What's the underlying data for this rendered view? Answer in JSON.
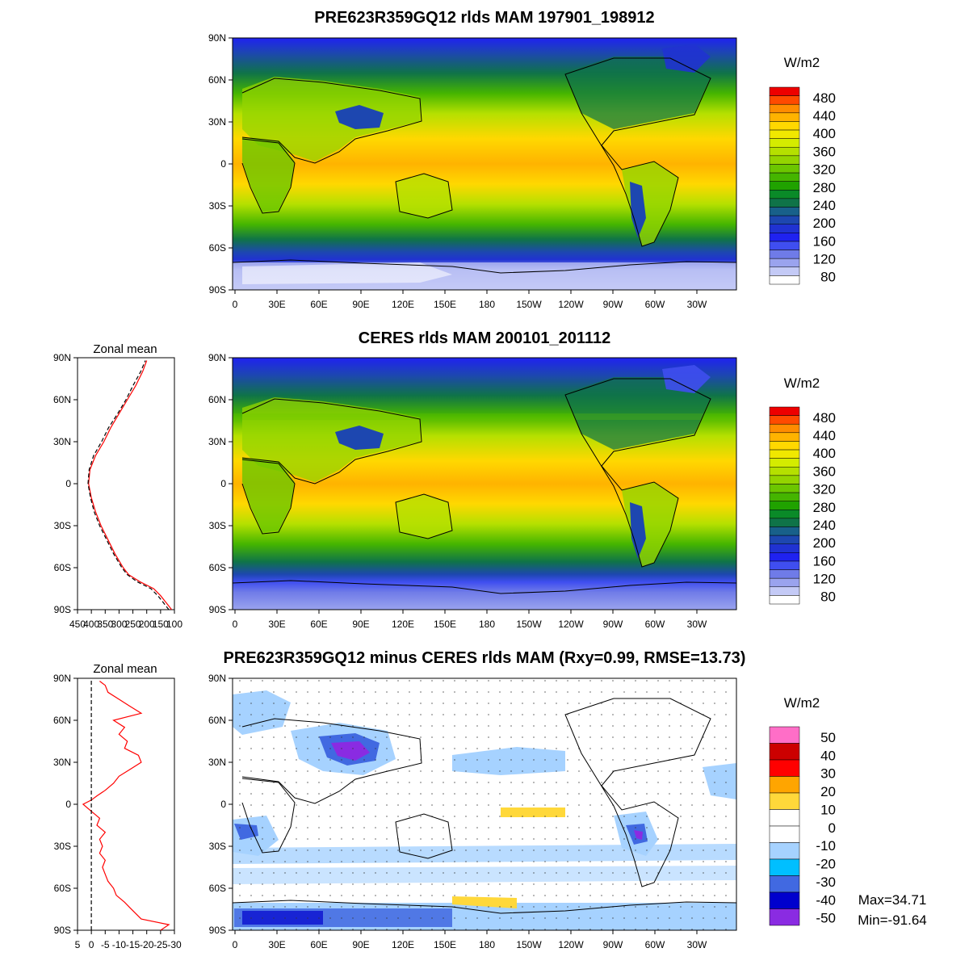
{
  "units": "W/m2",
  "lat_ticks": [
    "90N",
    "60N",
    "30N",
    "0",
    "30S",
    "60S",
    "90S"
  ],
  "lon_ticks": [
    "0",
    "30E",
    "60E",
    "90E",
    "120E",
    "150E",
    "180",
    "150W",
    "120W",
    "90W",
    "60W",
    "30W"
  ],
  "zonal_mean_label": "Zonal mean",
  "zonal_x_ticks_abs": [
    "450",
    "400",
    "350",
    "300",
    "250",
    "200",
    "150",
    "100"
  ],
  "zonal_x_ticks_diff": [
    "5",
    "0",
    "-5",
    "-10",
    "-15",
    "-20",
    "-25",
    "-30"
  ],
  "panels": [
    {
      "id": "model",
      "title": "PRE623R359GQ12 rlds MAM 197901_198912"
    },
    {
      "id": "obs",
      "title": "CERES rlds MAM 200101_201112"
    },
    {
      "id": "diff",
      "title": "PRE623R359GQ12 minus CERES rlds MAM (Rxy=0.99, RMSE=13.73)"
    }
  ],
  "colorbar_abs": {
    "labels": [
      "480",
      "440",
      "400",
      "360",
      "320",
      "280",
      "240",
      "200",
      "160",
      "120",
      "80"
    ],
    "colors": [
      "#ee0000",
      "#ff4a00",
      "#ff8c00",
      "#ffb300",
      "#ffd800",
      "#f0e800",
      "#d4ec00",
      "#b5e000",
      "#94d400",
      "#6cc600",
      "#45b500",
      "#20a200",
      "#0a8a28",
      "#0f7348",
      "#18608a",
      "#1d47b0",
      "#2032d2",
      "#1f22f0",
      "#3f4ef0",
      "#6f7be8",
      "#9aa3ee",
      "#c4caf6",
      "#ffffff"
    ]
  },
  "colorbar_diff": {
    "labels": [
      "50",
      "40",
      "30",
      "20",
      "10",
      "0",
      "-10",
      "-20",
      "-30",
      "-40",
      "-50"
    ],
    "colors": [
      "#ff6ec7",
      "#cc0000",
      "#ff0000",
      "#ffa500",
      "#ffd83a",
      "#ffffff",
      "#ffffff",
      "#a6d2ff",
      "#00bfff",
      "#4169e1",
      "#0000cd",
      "#8a2be2"
    ]
  },
  "stats": {
    "max": "Max=34.71",
    "min": "Min=-91.64"
  },
  "chart_data": [
    {
      "type": "line",
      "title": "Zonal mean",
      "panel": "obs",
      "xlim": [
        450,
        100
      ],
      "ylim": [
        -90,
        90
      ],
      "series": [
        {
          "color": "#ff0000",
          "style": "solid",
          "lat": [
            -90,
            -85,
            -80,
            -75,
            -70,
            -65,
            -60,
            -50,
            -40,
            -30,
            -20,
            -10,
            0,
            10,
            20,
            30,
            40,
            50,
            60,
            70,
            80,
            88
          ],
          "values": [
            110,
            130,
            150,
            175,
            225,
            265,
            285,
            315,
            340,
            365,
            385,
            400,
            410,
            405,
            385,
            355,
            330,
            300,
            270,
            240,
            215,
            200
          ]
        },
        {
          "color": "#000000",
          "style": "dashed",
          "lat": [
            -90,
            -85,
            -80,
            -75,
            -70,
            -65,
            -60,
            -50,
            -40,
            -30,
            -20,
            -10,
            0,
            10,
            20,
            30,
            40,
            50,
            60,
            70,
            80,
            88
          ],
          "values": [
            120,
            140,
            160,
            185,
            235,
            270,
            290,
            320,
            345,
            370,
            390,
            403,
            412,
            408,
            392,
            363,
            338,
            305,
            275,
            250,
            222,
            205
          ]
        }
      ]
    },
    {
      "type": "line",
      "title": "Zonal mean",
      "panel": "diff",
      "xlim": [
        5,
        -30
      ],
      "ylim": [
        -90,
        90
      ],
      "series": [
        {
          "color": "#ff0000",
          "style": "solid",
          "lat": [
            -90,
            -86,
            -82,
            -78,
            -74,
            -70,
            -65,
            -60,
            -55,
            -50,
            -45,
            -40,
            -35,
            -30,
            -25,
            -20,
            -15,
            -10,
            -5,
            0,
            3,
            6,
            10,
            15,
            20,
            25,
            30,
            35,
            40,
            45,
            50,
            55,
            60,
            65,
            70,
            75,
            80,
            85,
            88
          ],
          "values": [
            -25,
            -28,
            -18,
            -16,
            -14,
            -12,
            -9,
            -8,
            -6,
            -5,
            -4,
            -5,
            -3,
            -4,
            -3,
            -5,
            -2,
            -3,
            0,
            3,
            0,
            -2,
            -5,
            -8,
            -10,
            -14,
            -18,
            -17,
            -12,
            -13,
            -10,
            -12,
            -8,
            -18,
            -14,
            -10,
            -6,
            -5,
            -3
          ]
        },
        {
          "color": "#000000",
          "style": "dashed",
          "lat": [
            -90,
            90
          ],
          "values": [
            0,
            0
          ]
        }
      ]
    }
  ]
}
